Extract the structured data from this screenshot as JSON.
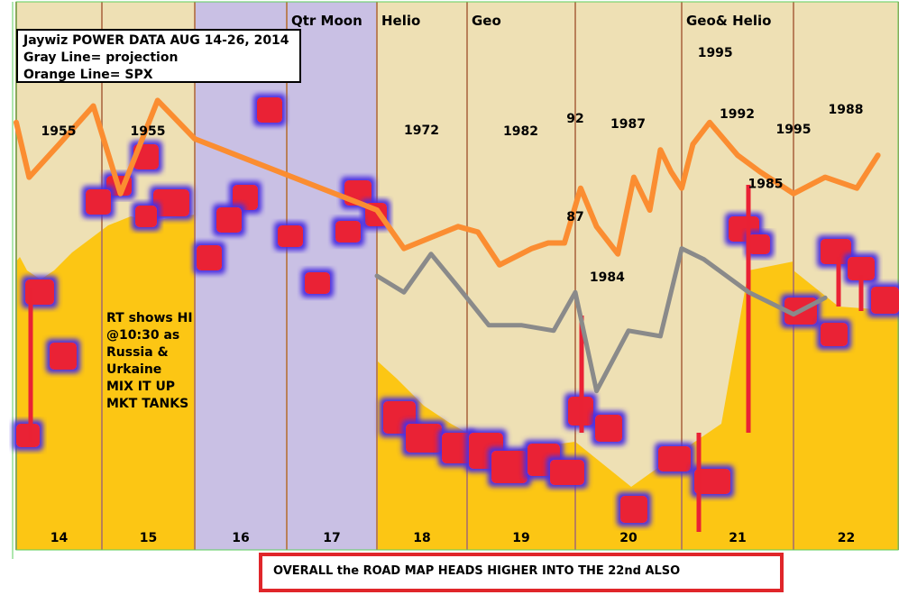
{
  "legend": {
    "title": "Jaywiz POWER DATA AUG 14-26, 2014",
    "gray": "Gray Line= projection",
    "orange": "Orange Line= SPX"
  },
  "note_lines": [
    "RT shows HI",
    "@10:30 as",
    "Russia &",
    "Urkaine",
    "MIX IT UP",
    "MKT TANKS"
  ],
  "footer": "OVERALL the ROAD MAP HEADS HIGHER INTO THE 22nd ALSO",
  "colors": {
    "tan": "#eee0b4",
    "gold": "#fcc614",
    "lavender": "#c9c0e4",
    "divider": "#b98059",
    "orange": "#fb8d31",
    "gray": "#8a8a8a",
    "blob_red": "#ea2134",
    "blob_edge": "#4b2fe0",
    "footer_border": "#e0262a"
  },
  "chart_data": {
    "type": "line",
    "title": "Jaywiz POWER DATA AUG 14-26, 2014",
    "categories": [
      "14",
      "15",
      "16",
      "17",
      "18",
      "19",
      "20",
      "21",
      "22"
    ],
    "column_headers": [
      "",
      "",
      "",
      "Qtr Moon",
      "Helio",
      "Geo",
      "",
      "Geo& Helio",
      ""
    ],
    "column_years": [
      "1955",
      "1955",
      "",
      "",
      "1972",
      "1982",
      "1987",
      "1992",
      "1988"
    ],
    "series": [
      {
        "name": "Orange Line= SPX",
        "x": [
          14.0,
          14.15,
          14.5,
          14.9,
          15.2,
          15.6,
          16.0,
          18.0,
          18.3,
          18.6,
          18.9,
          19.1,
          19.3,
          19.6,
          19.75,
          19.9,
          20.05,
          20.2,
          20.4,
          20.55,
          20.7,
          20.8,
          20.9,
          21.0,
          21.1,
          21.25,
          21.5,
          21.7,
          22.0,
          22.3,
          22.6,
          22.8
        ],
        "y": [
          78,
          68,
          74,
          81,
          65,
          82,
          75,
          62,
          55,
          57,
          59,
          58,
          52,
          55,
          56,
          56,
          66,
          59,
          54,
          68,
          62,
          73,
          69,
          66,
          74,
          78,
          72,
          69,
          65,
          68,
          66,
          72
        ]
      },
      {
        "name": "Gray Line= projection",
        "x": [
          18.0,
          18.3,
          18.6,
          18.9,
          19.2,
          19.5,
          19.8,
          20.0,
          20.2,
          20.5,
          20.8,
          21.0,
          21.2,
          21.4,
          21.6,
          21.8,
          22.0,
          22.3
        ],
        "y": [
          50,
          47,
          54,
          48,
          41,
          41,
          40,
          47,
          29,
          40,
          39,
          55,
          53,
          50,
          47,
          45,
          43,
          46
        ]
      }
    ],
    "year_labels": [
      {
        "text": "92",
        "x": 20.0,
        "y": 78
      },
      {
        "text": "87",
        "x": 20.0,
        "y": 60
      },
      {
        "text": "1984",
        "x": 20.3,
        "y": 49
      },
      {
        "text": "1995",
        "x": 21.3,
        "y": 90
      },
      {
        "text": "1995",
        "x": 22.0,
        "y": 76
      },
      {
        "text": "1985",
        "x": 21.75,
        "y": 66
      }
    ],
    "ylim": [
      0,
      100
    ],
    "xlabel": "",
    "ylabel": "",
    "grid": false
  }
}
